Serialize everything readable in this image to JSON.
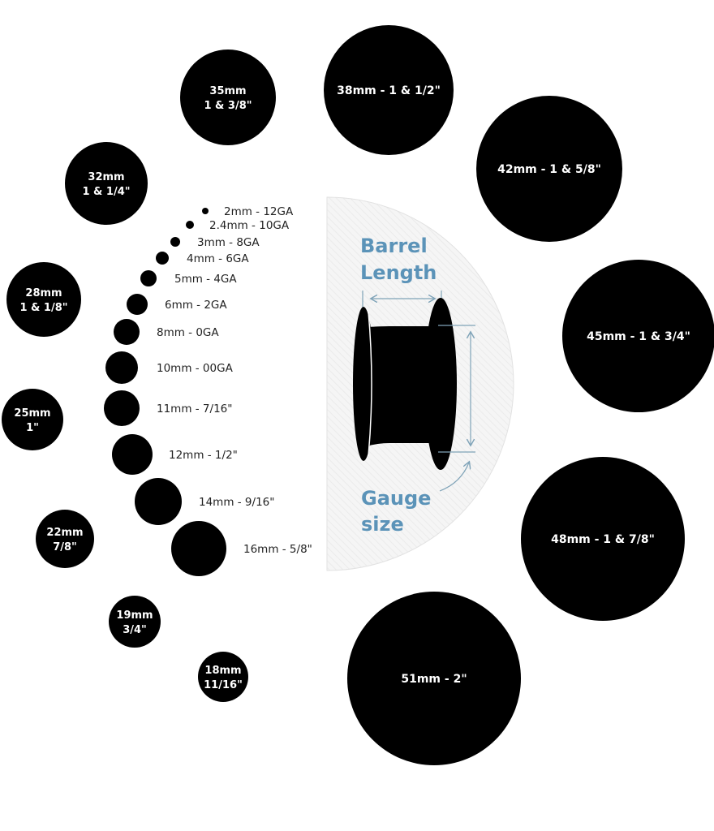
{
  "colors": {
    "circle": "#000000",
    "accent": "#5b93b8",
    "panel": "#f3f3f3",
    "small_label": "#222222",
    "big_label": "#ffffff"
  },
  "small_sizes": [
    {
      "label": "2mm - 12GA"
    },
    {
      "label": "2.4mm - 10GA"
    },
    {
      "label": "3mm - 8GA"
    },
    {
      "label": "4mm - 6GA"
    },
    {
      "label": "5mm - 4GA"
    },
    {
      "label": "6mm - 2GA"
    },
    {
      "label": "8mm - 0GA"
    },
    {
      "label": "10mm - 00GA"
    },
    {
      "label": "11mm - 7/16\""
    },
    {
      "label": "12mm - 1/2\""
    },
    {
      "label": "14mm - 9/16\""
    },
    {
      "label": "16mm - 5/8\""
    }
  ],
  "large_sizes": [
    {
      "lines": [
        "35mm",
        "1 & 3/8\""
      ]
    },
    {
      "lines": [
        "32mm",
        "1 & 1/4\""
      ]
    },
    {
      "lines": [
        "28mm",
        "1 & 1/8\""
      ]
    },
    {
      "lines": [
        "25mm",
        "1\""
      ]
    },
    {
      "lines": [
        "22mm",
        "7/8\""
      ]
    },
    {
      "lines": [
        "19mm",
        "3/4\""
      ]
    },
    {
      "lines": [
        "18mm",
        "11/16\""
      ]
    },
    {
      "lines": [
        "38mm - 1 & 1/2\""
      ]
    },
    {
      "lines": [
        "42mm - 1 & 5/8\""
      ]
    },
    {
      "lines": [
        "45mm - 1 & 3/4\""
      ]
    },
    {
      "lines": [
        "48mm - 1 & 7/8\""
      ]
    },
    {
      "lines": [
        "51mm - 2\""
      ]
    }
  ],
  "diagram": {
    "barrel_label": [
      "Barrel",
      "Length"
    ],
    "gauge_label": [
      "Gauge",
      "size"
    ]
  }
}
